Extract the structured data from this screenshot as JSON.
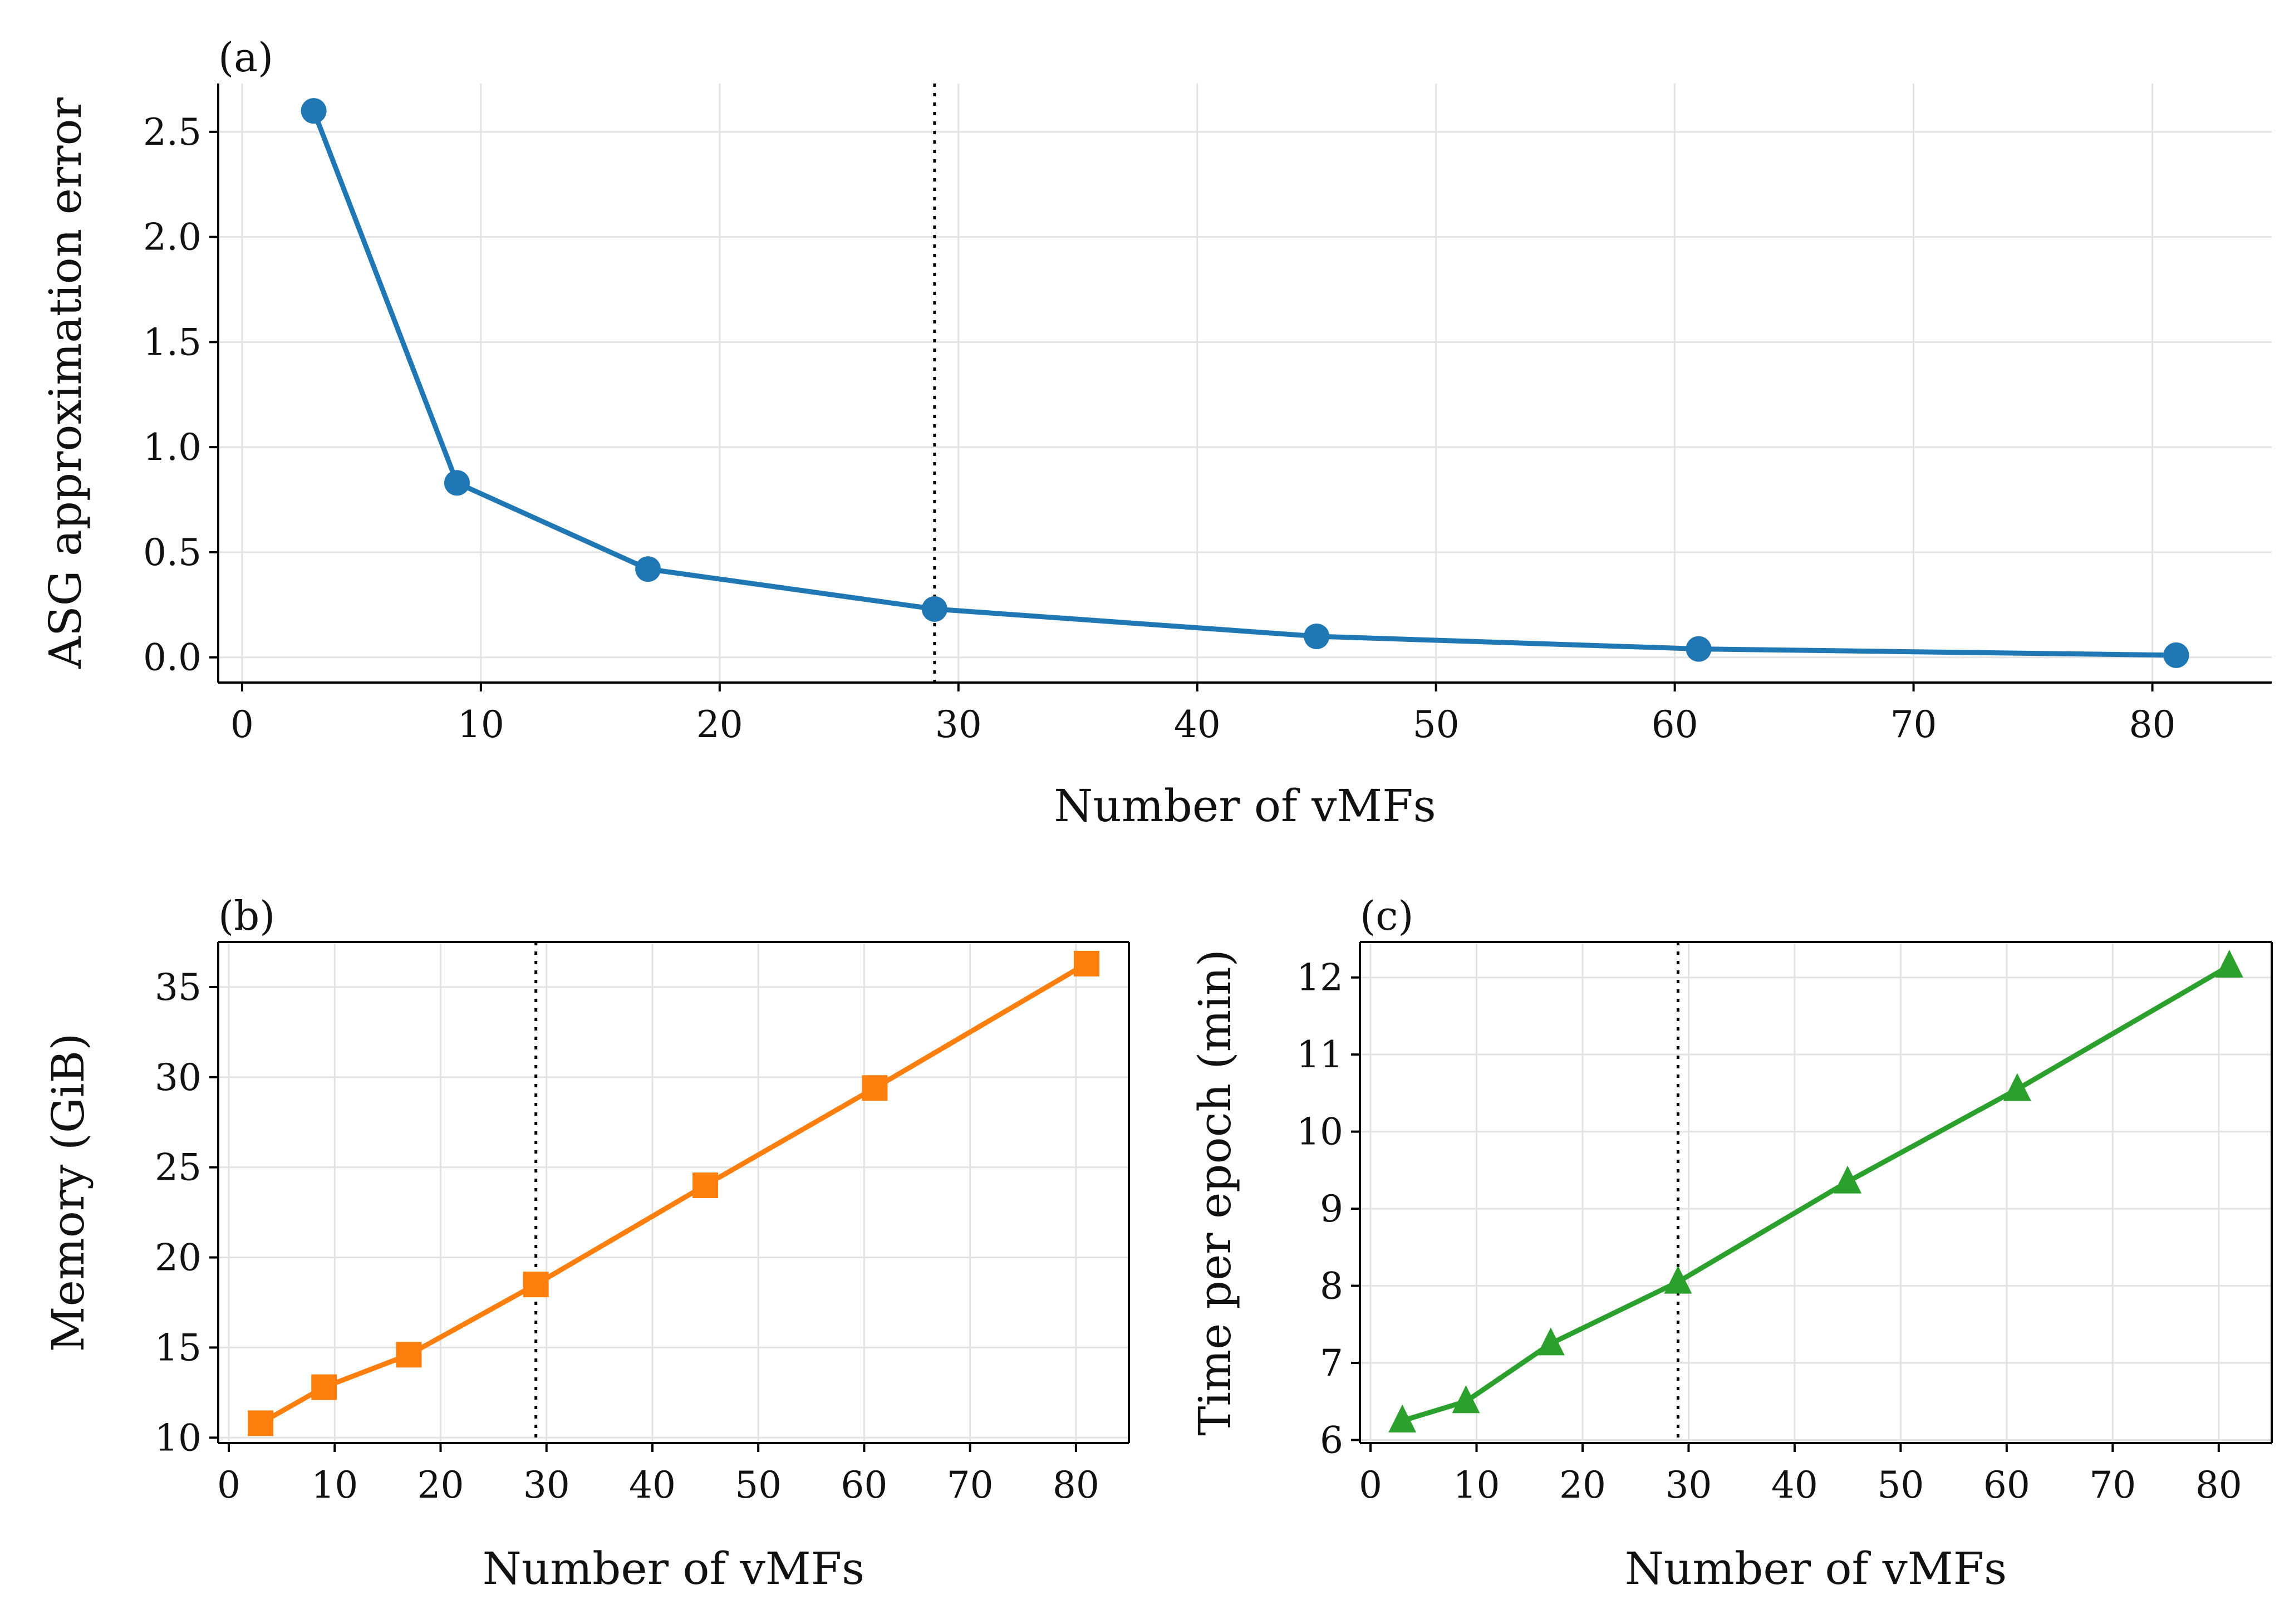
{
  "chart_data": [
    {
      "panel": "(a)",
      "type": "line",
      "marker": "circle",
      "color": "#1f77b4",
      "xlabel": "Number of vMFs",
      "ylabel": "ASG approximation error",
      "xlim": [
        -1,
        85
      ],
      "ylim": [
        -0.12,
        2.73
      ],
      "xticks": [
        0,
        10,
        20,
        30,
        40,
        50,
        60,
        70,
        80
      ],
      "yticks": [
        0.0,
        0.5,
        1.0,
        1.5,
        2.0,
        2.5
      ],
      "ytick_labels": [
        "0.0",
        "0.5",
        "1.0",
        "1.5",
        "2.0",
        "2.5"
      ],
      "grid": true,
      "spines": "left-bottom",
      "reference_line_x": 29,
      "x": [
        3,
        9,
        17,
        29,
        45,
        61,
        81
      ],
      "y": [
        2.6,
        0.83,
        0.42,
        0.23,
        0.1,
        0.04,
        0.01
      ]
    },
    {
      "panel": "(b)",
      "type": "line",
      "marker": "square",
      "color": "#ff7f0e",
      "xlabel": "Number of vMFs",
      "ylabel": "Memory (GiB)",
      "xlim": [
        -1,
        85
      ],
      "ylim": [
        9.7,
        37.5
      ],
      "xticks": [
        0,
        10,
        20,
        30,
        40,
        50,
        60,
        70,
        80
      ],
      "yticks": [
        10,
        15,
        20,
        25,
        30,
        35
      ],
      "ytick_labels": [
        "10",
        "15",
        "20",
        "25",
        "30",
        "35"
      ],
      "grid": true,
      "spines": "box",
      "reference_line_x": 29,
      "x": [
        3,
        9,
        17,
        29,
        45,
        61,
        81
      ],
      "y": [
        10.8,
        12.8,
        14.6,
        18.5,
        24.0,
        29.4,
        36.3
      ]
    },
    {
      "panel": "(c)",
      "type": "line",
      "marker": "triangle",
      "color": "#2ca02c",
      "xlabel": "Number of vMFs",
      "ylabel": "Time per epoch (min)",
      "xlim": [
        -1,
        85
      ],
      "ylim": [
        5.96,
        12.46
      ],
      "xticks": [
        0,
        10,
        20,
        30,
        40,
        50,
        60,
        70,
        80
      ],
      "yticks": [
        6,
        7,
        8,
        9,
        10,
        11,
        12
      ],
      "ytick_labels": [
        "6",
        "7",
        "8",
        "9",
        "10",
        "11",
        "12"
      ],
      "grid": true,
      "spines": "box",
      "reference_line_x": 29,
      "x": [
        3,
        9,
        17,
        29,
        45,
        61,
        81
      ],
      "y": [
        6.25,
        6.5,
        7.25,
        8.05,
        9.35,
        10.55,
        12.15
      ]
    }
  ]
}
